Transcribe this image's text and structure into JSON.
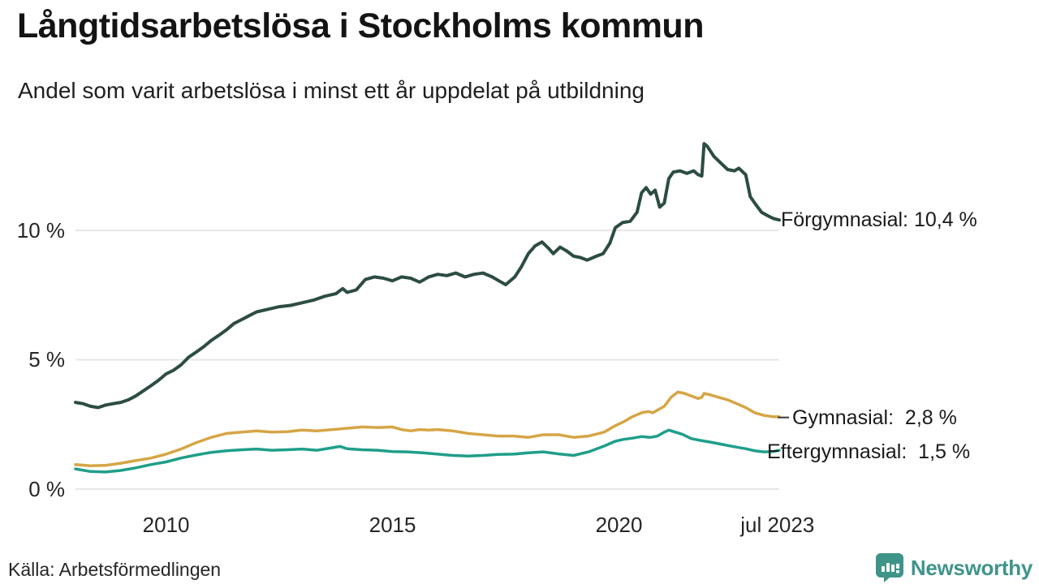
{
  "header": {
    "title": "Långtidsarbetslösa i Stockholms kommun",
    "subtitle": "Andel som varit arbetslösa i minst ett år uppdelat på utbildning"
  },
  "footer": {
    "source": "Källa: Arbetsförmedlingen",
    "brand": "Newsworthy"
  },
  "colors": {
    "series_forgymnasial": "#2c4c44",
    "series_gymnasial": "#d6a545",
    "series_eftergymnasial": "#1f9e8a",
    "gridline": "#e7e7e7",
    "leader_dash": "#3a3a3a",
    "brand_teal": "#3f948a",
    "text": "#1a1a1a"
  },
  "chart_data": {
    "type": "line",
    "title": "Långtidsarbetslösa i Stockholms kommun",
    "subtitle": "Andel som varit arbetslösa i minst ett år uppdelat på utbildning",
    "x_unit": "year",
    "y_unit": "percent",
    "xlim": [
      2008.0,
      2023.54
    ],
    "ylim": [
      0,
      14.2
    ],
    "grid": "horizontal",
    "legend_position": "end-of-line-labels",
    "xticks": [
      {
        "value": 2010,
        "label": "2010"
      },
      {
        "value": 2015,
        "label": "2015"
      },
      {
        "value": 2020,
        "label": "2020"
      },
      {
        "value": 2023.5,
        "label": "jul 2023"
      }
    ],
    "yticks": [
      {
        "value": 0,
        "label": "0 %"
      },
      {
        "value": 5,
        "label": "5 %"
      },
      {
        "value": 10,
        "label": "10 %"
      }
    ],
    "series": [
      {
        "slug": "forgymnasial",
        "name": "Förgymnasial",
        "end_label": "Förgymnasial: 10,4 %",
        "end_value": 10.4,
        "color": "#2c4c44",
        "points": [
          [
            2008.0,
            3.35
          ],
          [
            2008.17,
            3.3
          ],
          [
            2008.33,
            3.2
          ],
          [
            2008.5,
            3.15
          ],
          [
            2008.67,
            3.25
          ],
          [
            2008.83,
            3.3
          ],
          [
            2009.0,
            3.35
          ],
          [
            2009.17,
            3.45
          ],
          [
            2009.33,
            3.6
          ],
          [
            2009.5,
            3.8
          ],
          [
            2009.67,
            4.0
          ],
          [
            2009.83,
            4.2
          ],
          [
            2010.0,
            4.45
          ],
          [
            2010.17,
            4.6
          ],
          [
            2010.33,
            4.8
          ],
          [
            2010.5,
            5.1
          ],
          [
            2010.67,
            5.3
          ],
          [
            2010.83,
            5.5
          ],
          [
            2011.0,
            5.75
          ],
          [
            2011.17,
            5.95
          ],
          [
            2011.33,
            6.15
          ],
          [
            2011.5,
            6.4
          ],
          [
            2011.67,
            6.55
          ],
          [
            2011.83,
            6.7
          ],
          [
            2012.0,
            6.85
          ],
          [
            2012.25,
            6.95
          ],
          [
            2012.5,
            7.05
          ],
          [
            2012.75,
            7.1
          ],
          [
            2013.0,
            7.2
          ],
          [
            2013.25,
            7.3
          ],
          [
            2013.5,
            7.45
          ],
          [
            2013.75,
            7.55
          ],
          [
            2013.9,
            7.75
          ],
          [
            2014.0,
            7.6
          ],
          [
            2014.2,
            7.7
          ],
          [
            2014.4,
            8.1
          ],
          [
            2014.6,
            8.2
          ],
          [
            2014.8,
            8.15
          ],
          [
            2015.0,
            8.05
          ],
          [
            2015.2,
            8.2
          ],
          [
            2015.4,
            8.15
          ],
          [
            2015.6,
            8.0
          ],
          [
            2015.8,
            8.2
          ],
          [
            2016.0,
            8.3
          ],
          [
            2016.2,
            8.25
          ],
          [
            2016.4,
            8.35
          ],
          [
            2016.6,
            8.2
          ],
          [
            2016.8,
            8.3
          ],
          [
            2017.0,
            8.35
          ],
          [
            2017.2,
            8.2
          ],
          [
            2017.4,
            8.0
          ],
          [
            2017.5,
            7.9
          ],
          [
            2017.7,
            8.2
          ],
          [
            2017.85,
            8.6
          ],
          [
            2018.0,
            9.1
          ],
          [
            2018.15,
            9.4
          ],
          [
            2018.3,
            9.55
          ],
          [
            2018.45,
            9.3
          ],
          [
            2018.55,
            9.1
          ],
          [
            2018.7,
            9.35
          ],
          [
            2018.85,
            9.2
          ],
          [
            2019.0,
            9.0
          ],
          [
            2019.15,
            8.95
          ],
          [
            2019.3,
            8.85
          ],
          [
            2019.5,
            9.0
          ],
          [
            2019.65,
            9.1
          ],
          [
            2019.8,
            9.5
          ],
          [
            2019.92,
            10.1
          ],
          [
            2020.08,
            10.3
          ],
          [
            2020.25,
            10.35
          ],
          [
            2020.4,
            10.7
          ],
          [
            2020.5,
            11.45
          ],
          [
            2020.6,
            11.65
          ],
          [
            2020.7,
            11.4
          ],
          [
            2020.8,
            11.55
          ],
          [
            2020.9,
            10.9
          ],
          [
            2021.0,
            11.05
          ],
          [
            2021.1,
            12.0
          ],
          [
            2021.2,
            12.25
          ],
          [
            2021.35,
            12.3
          ],
          [
            2021.5,
            12.2
          ],
          [
            2021.65,
            12.3
          ],
          [
            2021.75,
            12.15
          ],
          [
            2021.83,
            12.1
          ],
          [
            2021.88,
            13.35
          ],
          [
            2021.95,
            13.25
          ],
          [
            2022.1,
            12.85
          ],
          [
            2022.25,
            12.6
          ],
          [
            2022.4,
            12.35
          ],
          [
            2022.55,
            12.3
          ],
          [
            2022.65,
            12.4
          ],
          [
            2022.8,
            12.15
          ],
          [
            2022.9,
            11.3
          ],
          [
            2023.0,
            11.05
          ],
          [
            2023.15,
            10.7
          ],
          [
            2023.3,
            10.55
          ],
          [
            2023.42,
            10.45
          ],
          [
            2023.54,
            10.4
          ]
        ]
      },
      {
        "slug": "gymnasial",
        "name": "Gymnasial",
        "end_label": "Gymnasial:  2,8 %",
        "end_value": 2.8,
        "color": "#d6a545",
        "points": [
          [
            2008.0,
            0.95
          ],
          [
            2008.33,
            0.9
          ],
          [
            2008.67,
            0.92
          ],
          [
            2009.0,
            1.0
          ],
          [
            2009.33,
            1.1
          ],
          [
            2009.67,
            1.2
          ],
          [
            2010.0,
            1.35
          ],
          [
            2010.33,
            1.55
          ],
          [
            2010.67,
            1.8
          ],
          [
            2011.0,
            2.0
          ],
          [
            2011.33,
            2.15
          ],
          [
            2011.67,
            2.2
          ],
          [
            2012.0,
            2.25
          ],
          [
            2012.33,
            2.2
          ],
          [
            2012.67,
            2.22
          ],
          [
            2013.0,
            2.28
          ],
          [
            2013.33,
            2.25
          ],
          [
            2013.67,
            2.3
          ],
          [
            2014.0,
            2.35
          ],
          [
            2014.33,
            2.4
          ],
          [
            2014.67,
            2.38
          ],
          [
            2015.0,
            2.4
          ],
          [
            2015.2,
            2.3
          ],
          [
            2015.4,
            2.25
          ],
          [
            2015.6,
            2.3
          ],
          [
            2015.8,
            2.28
          ],
          [
            2016.0,
            2.3
          ],
          [
            2016.33,
            2.25
          ],
          [
            2016.67,
            2.15
          ],
          [
            2017.0,
            2.1
          ],
          [
            2017.33,
            2.05
          ],
          [
            2017.67,
            2.05
          ],
          [
            2018.0,
            2.0
          ],
          [
            2018.33,
            2.1
          ],
          [
            2018.67,
            2.1
          ],
          [
            2019.0,
            2.0
          ],
          [
            2019.33,
            2.05
          ],
          [
            2019.67,
            2.2
          ],
          [
            2019.92,
            2.45
          ],
          [
            2020.1,
            2.6
          ],
          [
            2020.3,
            2.8
          ],
          [
            2020.5,
            2.95
          ],
          [
            2020.65,
            3.0
          ],
          [
            2020.75,
            2.95
          ],
          [
            2020.9,
            3.1
          ],
          [
            2021.0,
            3.2
          ],
          [
            2021.15,
            3.55
          ],
          [
            2021.3,
            3.75
          ],
          [
            2021.45,
            3.7
          ],
          [
            2021.6,
            3.6
          ],
          [
            2021.75,
            3.5
          ],
          [
            2021.83,
            3.55
          ],
          [
            2021.88,
            3.7
          ],
          [
            2022.0,
            3.65
          ],
          [
            2022.2,
            3.55
          ],
          [
            2022.4,
            3.45
          ],
          [
            2022.6,
            3.3
          ],
          [
            2022.8,
            3.15
          ],
          [
            2023.0,
            2.95
          ],
          [
            2023.2,
            2.85
          ],
          [
            2023.4,
            2.8
          ],
          [
            2023.54,
            2.8
          ]
        ]
      },
      {
        "slug": "eftergymnasial",
        "name": "Eftergymnasial",
        "end_label": "Eftergymnasial:  1,5 %",
        "end_value": 1.5,
        "color": "#1f9e8a",
        "points": [
          [
            2008.0,
            0.78
          ],
          [
            2008.33,
            0.68
          ],
          [
            2008.67,
            0.66
          ],
          [
            2009.0,
            0.72
          ],
          [
            2009.33,
            0.82
          ],
          [
            2009.67,
            0.95
          ],
          [
            2010.0,
            1.05
          ],
          [
            2010.33,
            1.2
          ],
          [
            2010.67,
            1.32
          ],
          [
            2011.0,
            1.42
          ],
          [
            2011.33,
            1.48
          ],
          [
            2011.67,
            1.52
          ],
          [
            2012.0,
            1.55
          ],
          [
            2012.33,
            1.5
          ],
          [
            2012.67,
            1.52
          ],
          [
            2013.0,
            1.55
          ],
          [
            2013.33,
            1.5
          ],
          [
            2013.67,
            1.6
          ],
          [
            2013.84,
            1.65
          ],
          [
            2014.0,
            1.56
          ],
          [
            2014.33,
            1.52
          ],
          [
            2014.67,
            1.5
          ],
          [
            2015.0,
            1.45
          ],
          [
            2015.33,
            1.44
          ],
          [
            2015.67,
            1.4
          ],
          [
            2016.0,
            1.35
          ],
          [
            2016.33,
            1.3
          ],
          [
            2016.67,
            1.28
          ],
          [
            2017.0,
            1.3
          ],
          [
            2017.33,
            1.34
          ],
          [
            2017.67,
            1.35
          ],
          [
            2018.0,
            1.4
          ],
          [
            2018.33,
            1.44
          ],
          [
            2018.67,
            1.36
          ],
          [
            2019.0,
            1.3
          ],
          [
            2019.33,
            1.44
          ],
          [
            2019.67,
            1.66
          ],
          [
            2019.92,
            1.85
          ],
          [
            2020.1,
            1.92
          ],
          [
            2020.3,
            1.97
          ],
          [
            2020.5,
            2.03
          ],
          [
            2020.7,
            2.0
          ],
          [
            2020.85,
            2.05
          ],
          [
            2021.0,
            2.2
          ],
          [
            2021.1,
            2.28
          ],
          [
            2021.25,
            2.2
          ],
          [
            2021.4,
            2.12
          ],
          [
            2021.6,
            1.95
          ],
          [
            2021.8,
            1.88
          ],
          [
            2022.0,
            1.82
          ],
          [
            2022.3,
            1.72
          ],
          [
            2022.6,
            1.62
          ],
          [
            2022.8,
            1.56
          ],
          [
            2023.0,
            1.48
          ],
          [
            2023.2,
            1.44
          ],
          [
            2023.4,
            1.45
          ],
          [
            2023.54,
            1.5
          ]
        ]
      }
    ]
  }
}
